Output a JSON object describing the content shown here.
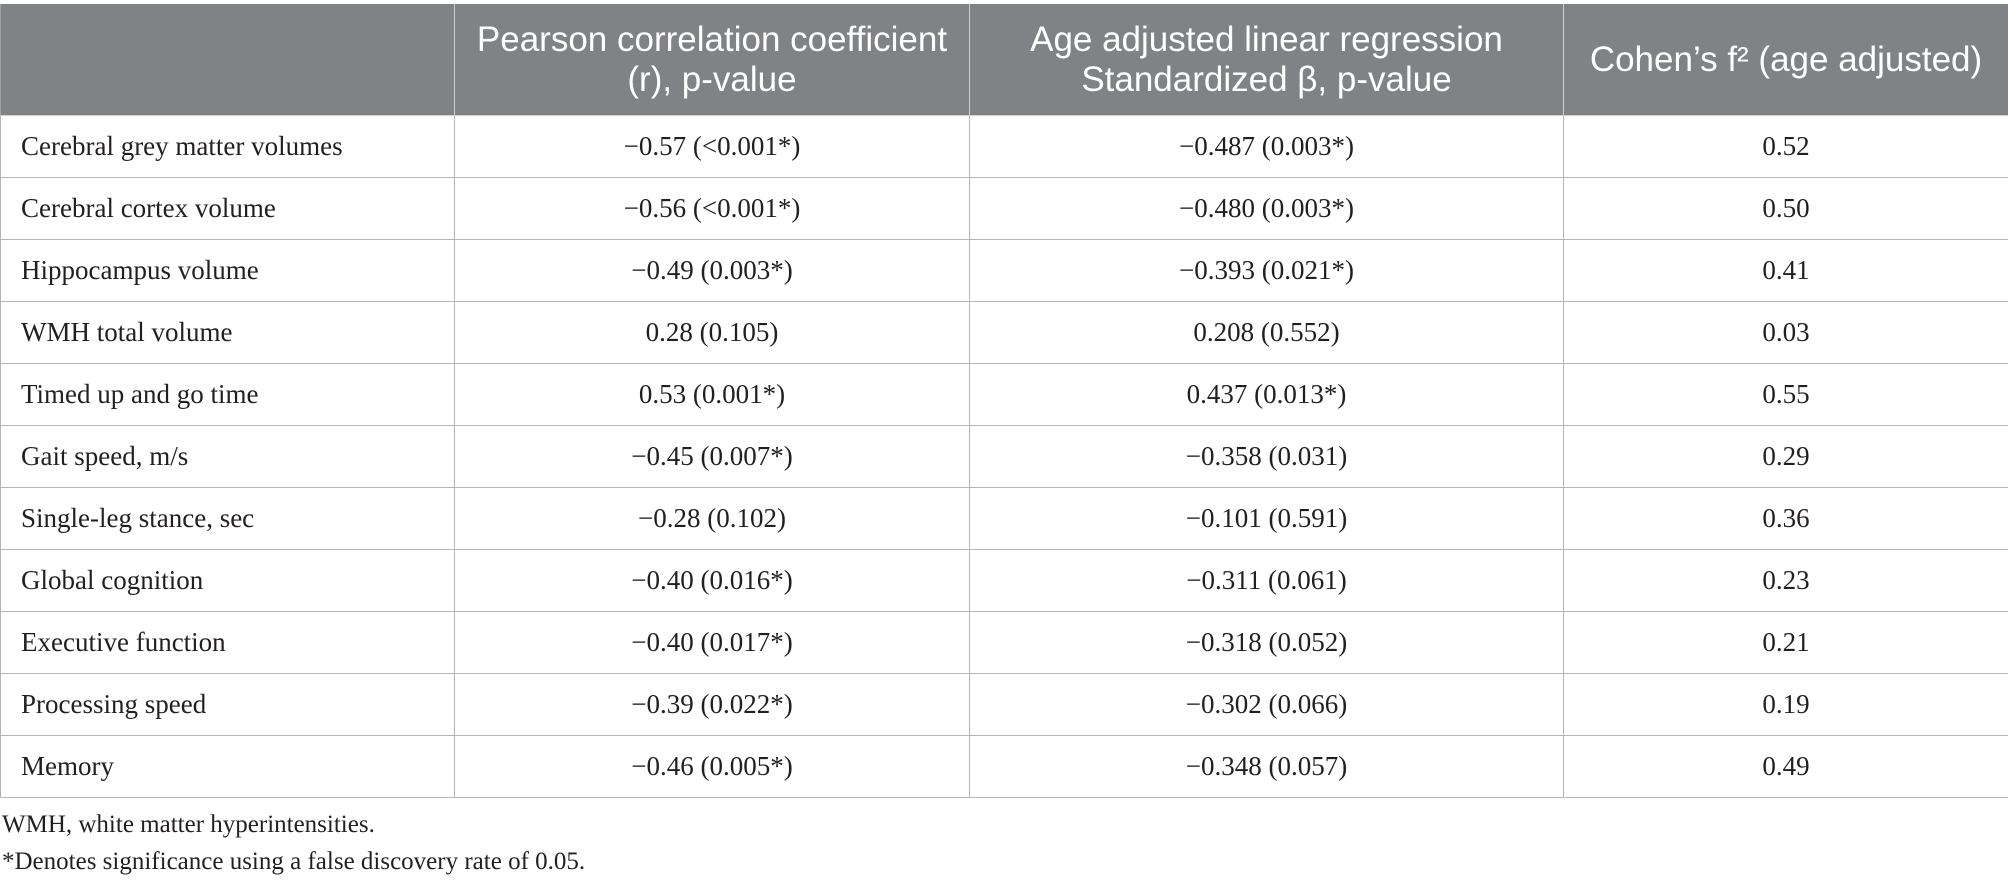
{
  "table": {
    "headers": [
      "",
      "Pearson correlation coefficient (r), p-value",
      "Age adjusted linear regression Standardized β, p-value",
      "Cohen’s f² (age adjusted)"
    ],
    "rows": [
      {
        "label": "Cerebral grey matter volumes",
        "pearson": "−0.57 (<0.001*)",
        "regression": "−0.487 (0.003*)",
        "cohen": "0.52"
      },
      {
        "label": "Cerebral cortex volume",
        "pearson": "−0.56 (<0.001*)",
        "regression": "−0.480 (0.003*)",
        "cohen": "0.50"
      },
      {
        "label": "Hippocampus volume",
        "pearson": "−0.49 (0.003*)",
        "regression": "−0.393 (0.021*)",
        "cohen": "0.41"
      },
      {
        "label": "WMH total volume",
        "pearson": "0.28 (0.105)",
        "regression": "0.208 (0.552)",
        "cohen": "0.03"
      },
      {
        "label": "Timed up and go time",
        "pearson": "0.53 (0.001*)",
        "regression": "0.437 (0.013*)",
        "cohen": "0.55"
      },
      {
        "label": "Gait speed, m/s",
        "pearson": "−0.45 (0.007*)",
        "regression": "−0.358 (0.031)",
        "cohen": "0.29"
      },
      {
        "label": "Single-leg stance, sec",
        "pearson": "−0.28 (0.102)",
        "regression": "−0.101 (0.591)",
        "cohen": "0.36"
      },
      {
        "label": "Global cognition",
        "pearson": "−0.40 (0.016*)",
        "regression": "−0.311 (0.061)",
        "cohen": "0.23"
      },
      {
        "label": "Executive function",
        "pearson": "−0.40 (0.017*)",
        "regression": "−0.318 (0.052)",
        "cohen": "0.21"
      },
      {
        "label": "Processing speed",
        "pearson": "−0.39 (0.022*)",
        "regression": "−0.302 (0.066)",
        "cohen": "0.19"
      },
      {
        "label": "Memory",
        "pearson": "−0.46 (0.005*)",
        "regression": "−0.348 (0.057)",
        "cohen": "0.49"
      }
    ]
  },
  "footnotes": {
    "abbreviation": "WMH, white matter hyperintensities.",
    "significance": "*Denotes significance using a false discovery rate of 0.05."
  },
  "colors": {
    "header_bg": "#808285",
    "header_text": "#ffffff",
    "grid": "#b6b6b6"
  }
}
